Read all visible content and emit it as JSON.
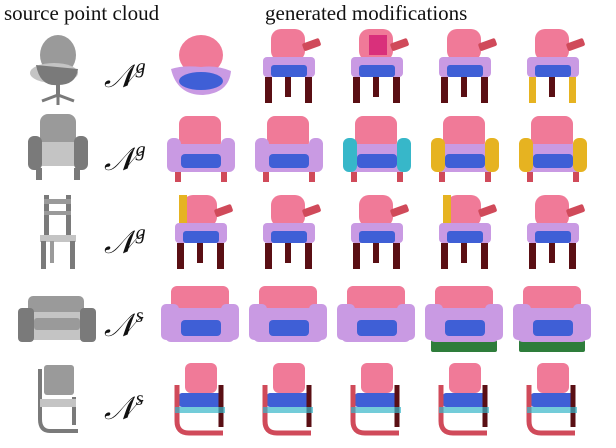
{
  "headers": {
    "source": "source point cloud",
    "generated": "generated modifications"
  },
  "operator_symbol": "𝒩",
  "colors": {
    "seat": "#3f5fd6",
    "back": "#f07a98",
    "body": "#c99ae3",
    "leg": "#5a0f14",
    "arm": "#d04a5a",
    "accent_yellow": "#e6b321",
    "accent_cyan": "#37b7c9",
    "accent_green": "#2e7d3b",
    "source_gray": "#9a9a9a"
  },
  "rows": [
    {
      "source": "swivel-chair",
      "superscript": "g",
      "outputs": [
        "blob",
        "armchair-legs",
        "armchair-legs-magenta",
        "armchair-legs",
        "armchair-yellow-frame"
      ]
    },
    {
      "source": "upholstered-armchair",
      "superscript": "g",
      "outputs": [
        "sofa-chair",
        "sofa-chair",
        "sofa-chair-cyan",
        "sofa-chair-yellow",
        "sofa-chair-yellow"
      ]
    },
    {
      "source": "wooden-chair",
      "superscript": "g",
      "outputs": [
        "armchair-yellow-back",
        "armchair-legs",
        "armchair-legs",
        "armchair-yellow-back",
        "armchair-legs"
      ]
    },
    {
      "source": "club-armchair",
      "superscript": "s",
      "outputs": [
        "club-chair",
        "club-chair",
        "club-chair",
        "club-chair-green",
        "club-chair-green"
      ]
    },
    {
      "source": "cantilever-chair",
      "superscript": "s",
      "outputs": [
        "cantilever-chair",
        "cantilever-chair",
        "cantilever-chair",
        "cantilever-chair",
        "cantilever-chair"
      ]
    }
  ]
}
